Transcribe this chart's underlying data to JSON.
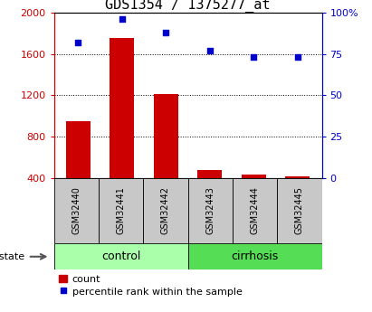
{
  "title": "GDS1354 / 1375277_at",
  "samples": [
    "GSM32440",
    "GSM32441",
    "GSM32442",
    "GSM32443",
    "GSM32444",
    "GSM32445"
  ],
  "counts": [
    950,
    1750,
    1210,
    480,
    430,
    415
  ],
  "percentile_ranks": [
    82,
    96,
    88,
    77,
    73,
    73
  ],
  "groups": [
    "control",
    "control",
    "control",
    "cirrhosis",
    "cirrhosis",
    "cirrhosis"
  ],
  "ylim_left": [
    400,
    2000
  ],
  "ylim_right": [
    0,
    100
  ],
  "yticks_left": [
    400,
    800,
    1200,
    1600,
    2000
  ],
  "yticks_right": [
    0,
    25,
    50,
    75,
    100
  ],
  "bar_color": "#cc0000",
  "scatter_color": "#0000cc",
  "control_color": "#aaffaa",
  "cirrhosis_color": "#55dd55",
  "left_axis_color": "#cc0000",
  "right_axis_color": "#0000cc",
  "title_fontsize": 11,
  "tick_fontsize": 8,
  "legend_fontsize": 8,
  "bar_width": 0.55,
  "sample_box_color": "#c8c8c8",
  "xlim": [
    -0.55,
    5.55
  ]
}
